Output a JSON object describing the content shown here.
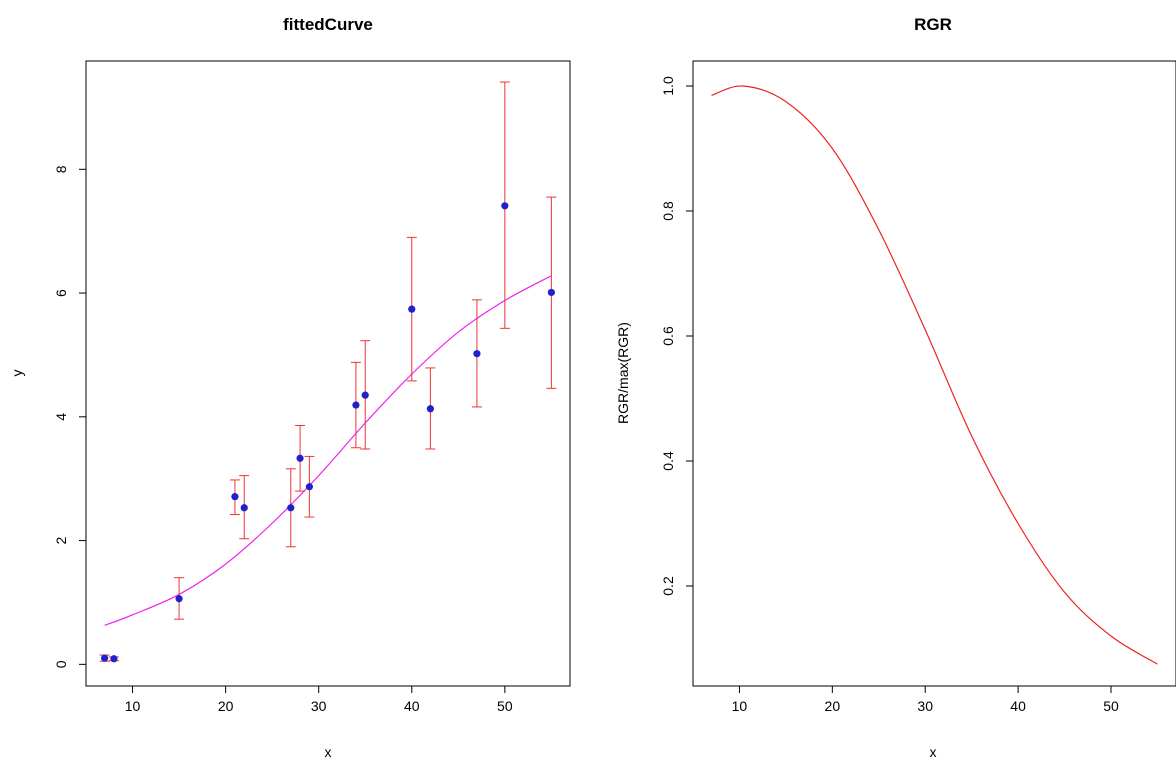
{
  "chart_data": [
    {
      "type": "scatter",
      "title": "fittedCurve",
      "xlabel": "x",
      "ylabel": "y",
      "xlim": [
        5,
        57
      ],
      "ylim": [
        -0.35,
        9.75
      ],
      "xticks": [
        10,
        20,
        30,
        40,
        50
      ],
      "yticks": [
        0,
        2,
        4,
        6,
        8
      ],
      "grid": false,
      "points_color": "#2020cc",
      "errorbar_color": "#ee3333",
      "curve_color": "#ee22ee",
      "points": [
        {
          "x": 7,
          "y": 0.1,
          "lower": 0.05,
          "upper": 0.15
        },
        {
          "x": 8,
          "y": 0.09,
          "lower": 0.06,
          "upper": 0.12
        },
        {
          "x": 15,
          "y": 1.06,
          "lower": 0.73,
          "upper": 1.4
        },
        {
          "x": 21,
          "y": 2.71,
          "lower": 2.42,
          "upper": 2.98
        },
        {
          "x": 22,
          "y": 2.53,
          "lower": 2.03,
          "upper": 3.05
        },
        {
          "x": 27,
          "y": 2.53,
          "lower": 1.9,
          "upper": 3.16
        },
        {
          "x": 28,
          "y": 3.33,
          "lower": 2.8,
          "upper": 3.86
        },
        {
          "x": 29,
          "y": 2.87,
          "lower": 2.38,
          "upper": 3.36
        },
        {
          "x": 34,
          "y": 4.19,
          "lower": 3.5,
          "upper": 4.88
        },
        {
          "x": 35,
          "y": 4.35,
          "lower": 3.48,
          "upper": 5.23
        },
        {
          "x": 40,
          "y": 5.74,
          "lower": 4.58,
          "upper": 6.9
        },
        {
          "x": 42,
          "y": 4.13,
          "lower": 3.48,
          "upper": 4.79
        },
        {
          "x": 47,
          "y": 5.02,
          "lower": 4.16,
          "upper": 5.89
        },
        {
          "x": 50,
          "y": 7.41,
          "lower": 5.43,
          "upper": 9.41
        },
        {
          "x": 55,
          "y": 6.01,
          "lower": 4.46,
          "upper": 7.55
        }
      ],
      "fitted_curve": {
        "x": [
          7,
          10,
          15,
          20,
          25,
          30,
          35,
          40,
          45,
          50,
          55
        ],
        "y": [
          0.63,
          0.8,
          1.13,
          1.62,
          2.28,
          3.05,
          3.9,
          4.69,
          5.37,
          5.88,
          6.28
        ]
      }
    },
    {
      "type": "line",
      "title": "RGR",
      "xlabel": "x",
      "ylabel": "RGR/max(RGR)",
      "xlim": [
        5,
        57
      ],
      "ylim": [
        0.04,
        1.04
      ],
      "xticks": [
        10,
        20,
        30,
        40,
        50
      ],
      "yticks": [
        0.2,
        0.4,
        0.6,
        0.8,
        1.0
      ],
      "ytick_labels": [
        "0.2",
        "0.4",
        "0.6",
        "0.8",
        "1.0"
      ],
      "grid": false,
      "line_color": "#ee2222",
      "x": [
        7,
        10.4,
        15,
        20,
        25,
        30,
        35,
        40,
        45,
        50,
        55
      ],
      "y": [
        0.985,
        1.0,
        0.975,
        0.9,
        0.77,
        0.61,
        0.44,
        0.3,
        0.19,
        0.12,
        0.075
      ]
    }
  ]
}
